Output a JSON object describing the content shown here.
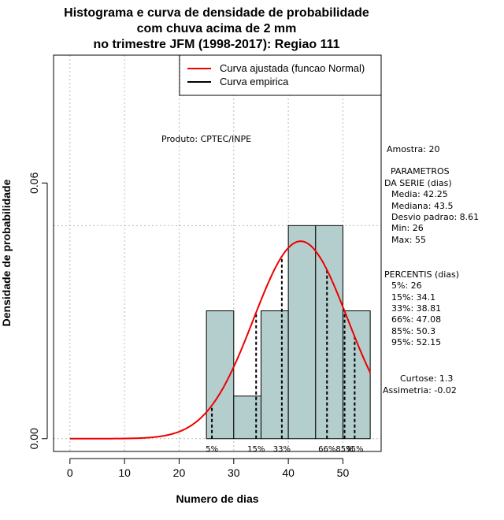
{
  "chart_data": {
    "type": "histogram",
    "title_lines": [
      "Histograma e curva de densidade de probabilidade",
      "com chuva acima de 2 mm",
      "no trimestre JFM (1998-2017): Regiao 111"
    ],
    "xlabel": "Numero de dias",
    "ylabel": "Densidade de probabilidade",
    "xlim": [
      -3,
      57
    ],
    "ylim": [
      -0.003,
      0.09
    ],
    "x_ticks": [
      0,
      10,
      20,
      30,
      40,
      50
    ],
    "x_tick_labels": [
      "0",
      "10",
      "20",
      "30",
      "40",
      "50"
    ],
    "y_ticks": [
      0.0,
      0.06
    ],
    "y_tick_labels": [
      "0.00",
      "0.06"
    ],
    "grid_lines_x": [
      0,
      10,
      20,
      30,
      40,
      50
    ],
    "hline_max_density": 0.05,
    "bins": [
      {
        "left": 25,
        "right": 30,
        "density": 0.03
      },
      {
        "left": 30,
        "right": 35,
        "density": 0.01
      },
      {
        "left": 35,
        "right": 40,
        "density": 0.03
      },
      {
        "left": 40,
        "right": 45,
        "density": 0.05
      },
      {
        "left": 45,
        "right": 50,
        "density": 0.05
      },
      {
        "left": 50,
        "right": 55,
        "density": 0.03
      }
    ],
    "normal_curve": {
      "mean": 42.25,
      "sd": 8.61,
      "x_from": 0,
      "x_to": 55
    },
    "percentile_lines": [
      {
        "label": "5%",
        "x": 26
      },
      {
        "label": "15%",
        "x": 34.1
      },
      {
        "label": "33%",
        "x": 38.81
      },
      {
        "label": "66%",
        "x": 47.08
      },
      {
        "label": "85%",
        "x": 50.3
      },
      {
        "label": "95%",
        "x": 52.15
      }
    ],
    "legend": [
      {
        "label": "Curva ajustada (funcao Normal)",
        "color": "#ee0000"
      },
      {
        "label": "Curva empirica",
        "color": "#000000"
      }
    ],
    "legend_position": "top-right",
    "product_note": "Produto: CPTEC/INPE",
    "colors": {
      "bar_fill": "#b4cdcd",
      "curve": "#ee0000",
      "grid": "#bbbbbb"
    }
  },
  "stats": {
    "amostra": "Amostra: 20",
    "param_title_1": "PARAMETROS",
    "param_title_2": "DA SERIE (dias)",
    "media": "Media: 42.25",
    "mediana": "Mediana: 43.5",
    "desvio": "Desvio padrao: 8.61",
    "min": "Min: 26",
    "max": "Max: 55",
    "percentis_title": "PERCENTIS (dias)",
    "p5": "5%: 26",
    "p15": "15%: 34.1",
    "p33": "33%: 38.81",
    "p66": "66%: 47.08",
    "p85": "85%: 50.3",
    "p95": "95%: 52.15",
    "curtose": "Curtose: 1.3",
    "assimetria": "Assimetria: -0.02"
  }
}
